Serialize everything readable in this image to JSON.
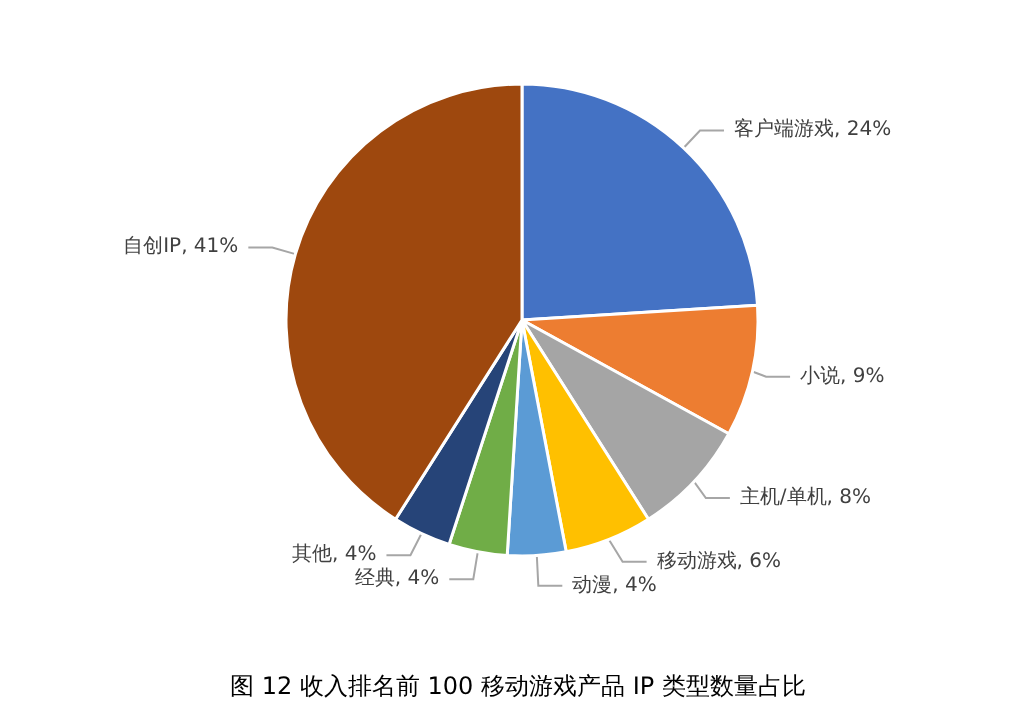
{
  "chart_data": {
    "type": "pie",
    "title": "图 12 收入排名前 100 移动游戏产品 IP 类型数量占比",
    "categories": [
      "客户端游戏",
      "小说",
      "主机/单机",
      "移动游戏",
      "动漫",
      "经典",
      "其他",
      "自创IP"
    ],
    "values": [
      24,
      9,
      8,
      6,
      4,
      4,
      4,
      41
    ],
    "colors": [
      "#4472c4",
      "#ed7d31",
      "#a5a5a5",
      "#ffc000",
      "#5b9bd5",
      "#70ad47",
      "#264478",
      "#9e480e"
    ],
    "value_labels": [
      "24%",
      "9%",
      "8%",
      "6%",
      "4%",
      "4%",
      "4%",
      "41%"
    ],
    "legend": false
  }
}
